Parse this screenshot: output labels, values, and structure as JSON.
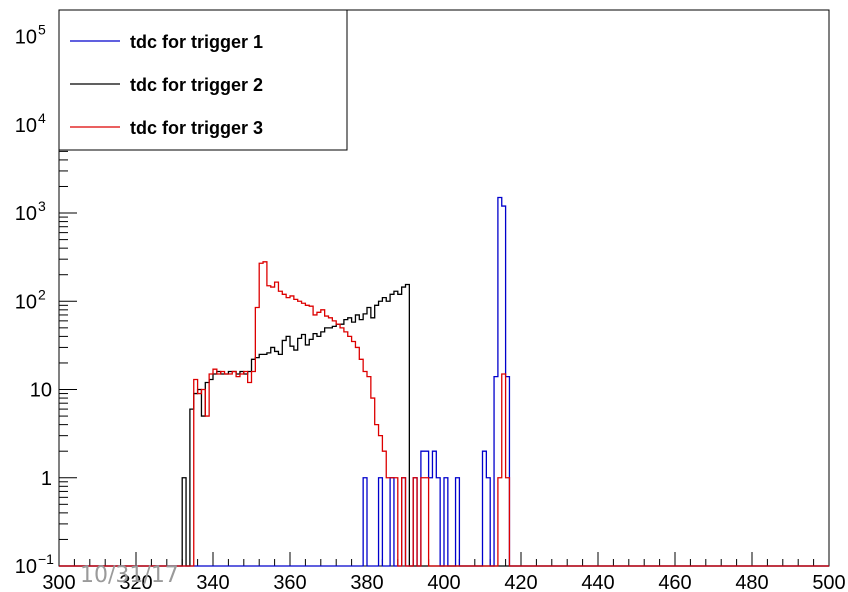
{
  "chart_data": {
    "type": "line",
    "title": "",
    "xlabel": "",
    "ylabel": "",
    "xlim": [
      300,
      500
    ],
    "ylim": [
      0.1,
      200000
    ],
    "yscale": "log",
    "bin_width": 1,
    "x_tick_labels": [
      "300",
      "320",
      "340",
      "360",
      "380",
      "400",
      "420",
      "440",
      "460",
      "480",
      "500"
    ],
    "x_tick_values": [
      300,
      320,
      340,
      360,
      380,
      400,
      420,
      440,
      460,
      480,
      500
    ],
    "y_tick_labels": [
      {
        "value": 0.1,
        "base": "10",
        "exp": "−1"
      },
      {
        "value": 1,
        "base": "1",
        "exp": ""
      },
      {
        "value": 10,
        "base": "10",
        "exp": ""
      },
      {
        "value": 100,
        "base": "10",
        "exp": "2"
      },
      {
        "value": 1000,
        "base": "10",
        "exp": "3"
      },
      {
        "value": 10000,
        "base": "10",
        "exp": "4"
      },
      {
        "value": 100000,
        "base": "10",
        "exp": "5"
      }
    ],
    "grid": false,
    "legend_position": "top-left",
    "series": [
      {
        "name": "tdc for trigger 1",
        "color": "#0000cc",
        "x": [
          379,
          380,
          383,
          384,
          385,
          386,
          387,
          388,
          389,
          390,
          391,
          392,
          393,
          394,
          395,
          396,
          397,
          398,
          399,
          400,
          401,
          402,
          403,
          404,
          405,
          406,
          407,
          408,
          409,
          410,
          411,
          412,
          413,
          414,
          415,
          416,
          417
        ],
        "y": [
          1,
          0,
          1,
          0,
          0,
          1,
          0,
          0,
          1,
          0,
          0,
          1,
          0,
          2,
          2,
          1,
          2,
          1,
          0,
          1,
          0,
          0,
          1,
          0,
          0,
          0,
          0,
          0,
          0,
          2,
          1,
          0,
          14,
          1500,
          1200,
          14,
          0
        ]
      },
      {
        "name": "tdc for trigger 2",
        "color": "#000000",
        "x": [
          332,
          333,
          334,
          335,
          336,
          337,
          338,
          339,
          340,
          341,
          342,
          343,
          344,
          345,
          346,
          347,
          348,
          349,
          350,
          351,
          352,
          353,
          354,
          355,
          356,
          357,
          358,
          359,
          360,
          361,
          362,
          363,
          364,
          365,
          366,
          367,
          368,
          369,
          370,
          371,
          372,
          373,
          374,
          375,
          376,
          377,
          378,
          379,
          380,
          381,
          382,
          383,
          384,
          385,
          386,
          387,
          388,
          389,
          390
        ],
        "y": [
          1,
          0,
          6,
          9,
          10,
          5,
          12,
          13,
          15,
          16,
          15,
          15,
          16,
          16,
          15,
          16,
          15,
          16,
          22,
          23,
          25,
          25,
          26,
          30,
          27,
          25,
          36,
          40,
          31,
          28,
          38,
          42,
          32,
          37,
          43,
          40,
          45,
          50,
          50,
          52,
          55,
          55,
          62,
          65,
          58,
          70,
          62,
          72,
          85,
          65,
          90,
          100,
          110,
          100,
          120,
          130,
          120,
          145,
          155
        ]
      },
      {
        "name": "tdc for trigger 3",
        "color": "#dd0000",
        "x": [
          334,
          335,
          336,
          337,
          338,
          339,
          340,
          341,
          342,
          343,
          344,
          345,
          346,
          347,
          348,
          349,
          350,
          351,
          352,
          353,
          354,
          355,
          356,
          357,
          358,
          359,
          360,
          361,
          362,
          363,
          364,
          365,
          366,
          367,
          368,
          369,
          370,
          371,
          372,
          373,
          374,
          375,
          376,
          377,
          378,
          379,
          380,
          381,
          382,
          383,
          384,
          385,
          386,
          387,
          388,
          389,
          390,
          391,
          392,
          393,
          394,
          395,
          396,
          397,
          398,
          399,
          400,
          401,
          402,
          403,
          404,
          405,
          406,
          407,
          408,
          409,
          410,
          411,
          412,
          413,
          414,
          415,
          416,
          417
        ],
        "y": [
          0,
          13,
          9,
          10,
          5,
          15,
          17,
          15,
          16,
          15,
          15,
          16,
          14,
          15,
          16,
          12,
          16,
          85,
          270,
          280,
          150,
          145,
          165,
          130,
          120,
          110,
          115,
          105,
          100,
          95,
          90,
          88,
          70,
          75,
          80,
          68,
          65,
          60,
          55,
          50,
          45,
          40,
          35,
          30,
          22,
          16,
          14,
          8,
          4,
          3,
          2,
          1,
          1,
          1,
          0,
          1,
          0,
          0,
          1,
          0,
          1,
          1,
          0,
          0,
          0,
          0,
          0,
          0,
          0,
          0,
          0,
          0,
          0,
          0,
          0,
          0,
          0,
          0,
          0,
          0,
          1,
          15,
          1,
          0
        ]
      }
    ]
  },
  "stamp_text": "10/31/17"
}
